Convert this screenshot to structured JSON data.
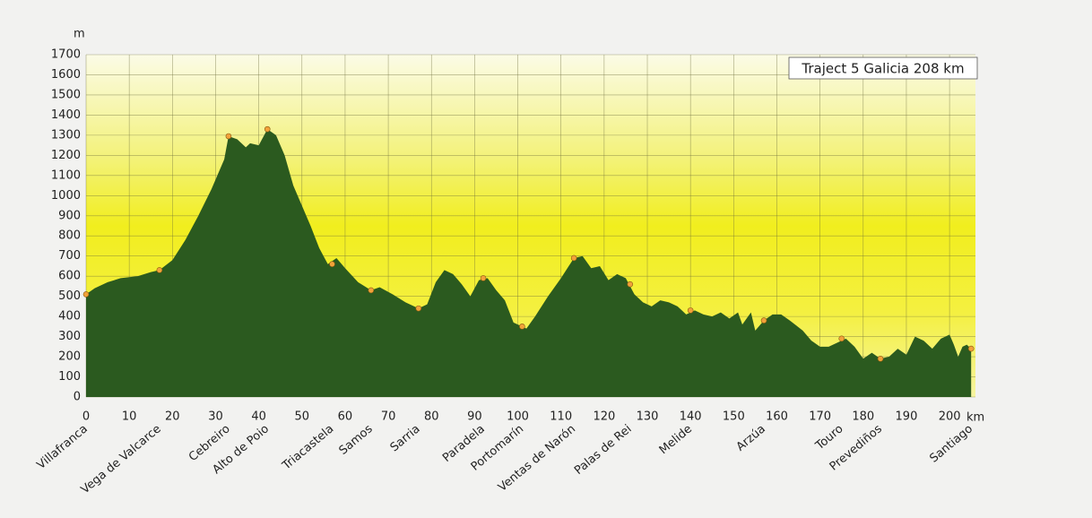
{
  "chart_data": {
    "type": "area",
    "title": "Traject 5 Galicia 208 km",
    "y_label": "m",
    "x_label": "km",
    "color": "#2b5a1f",
    "grid": true,
    "x": [
      0,
      2,
      5,
      8,
      12,
      15,
      17,
      20,
      23,
      26,
      29,
      32,
      33,
      35,
      37,
      38,
      40,
      42,
      44,
      46,
      48,
      50,
      52,
      54,
      56,
      58,
      60,
      63,
      66,
      68,
      71,
      74,
      77,
      79,
      81,
      83,
      85,
      87,
      89,
      91,
      93,
      95,
      97,
      99,
      101,
      102,
      104,
      107,
      110,
      113,
      115,
      117,
      119,
      121,
      123,
      125,
      127,
      129,
      131,
      133,
      135,
      137,
      139,
      141,
      143,
      145,
      147,
      149,
      151,
      152,
      154,
      155,
      157,
      159,
      161,
      163,
      166,
      168,
      170,
      172,
      174,
      176,
      178,
      180,
      182,
      184,
      186,
      188,
      190,
      192,
      194,
      196,
      198,
      200,
      201,
      202,
      203,
      204,
      205
    ],
    "values": [
      510,
      540,
      570,
      590,
      600,
      620,
      630,
      680,
      780,
      900,
      1030,
      1180,
      1295,
      1280,
      1240,
      1260,
      1250,
      1330,
      1300,
      1200,
      1050,
      950,
      850,
      740,
      660,
      690,
      640,
      570,
      530,
      545,
      510,
      470,
      440,
      460,
      570,
      630,
      610,
      560,
      500,
      580,
      590,
      530,
      480,
      370,
      350,
      340,
      400,
      500,
      590,
      690,
      700,
      640,
      650,
      580,
      610,
      590,
      510,
      470,
      450,
      480,
      470,
      450,
      410,
      430,
      410,
      400,
      420,
      390,
      420,
      360,
      420,
      330,
      380,
      410,
      410,
      380,
      330,
      280,
      250,
      250,
      270,
      290,
      250,
      190,
      220,
      190,
      200,
      240,
      210,
      300,
      280,
      240,
      290,
      310,
      260,
      200,
      250,
      260,
      240
    ],
    "waypoints": {
      "x": [
        0,
        17,
        33,
        42,
        57,
        66,
        77,
        92,
        101,
        113,
        126,
        140,
        157,
        175,
        184,
        205
      ],
      "values": [
        510,
        630,
        1295,
        1330,
        660,
        530,
        440,
        590,
        350,
        690,
        560,
        430,
        380,
        290,
        190,
        240
      ],
      "labels": [
        "Villafranca",
        "Vega de Valcarce",
        "Cebreiro",
        "Alto de Poio",
        "Triacastela",
        "Samos",
        "Sarria",
        "Paradela",
        "Portomarín",
        "Ventas de Narón",
        "Palas de Rei",
        "Melide",
        "Arzúa",
        "Touro",
        "Prevediños",
        "Santiago"
      ]
    },
    "xlim": [
      0,
      206
    ],
    "ylim": [
      0,
      1700
    ],
    "xticks": [
      0,
      10,
      20,
      30,
      40,
      50,
      60,
      70,
      80,
      90,
      100,
      110,
      120,
      130,
      140,
      150,
      160,
      170,
      180,
      190,
      200
    ],
    "yticks": [
      0,
      100,
      200,
      300,
      400,
      500,
      600,
      700,
      800,
      900,
      1000,
      1100,
      1200,
      1300,
      1400,
      1500,
      1600,
      1700
    ]
  }
}
